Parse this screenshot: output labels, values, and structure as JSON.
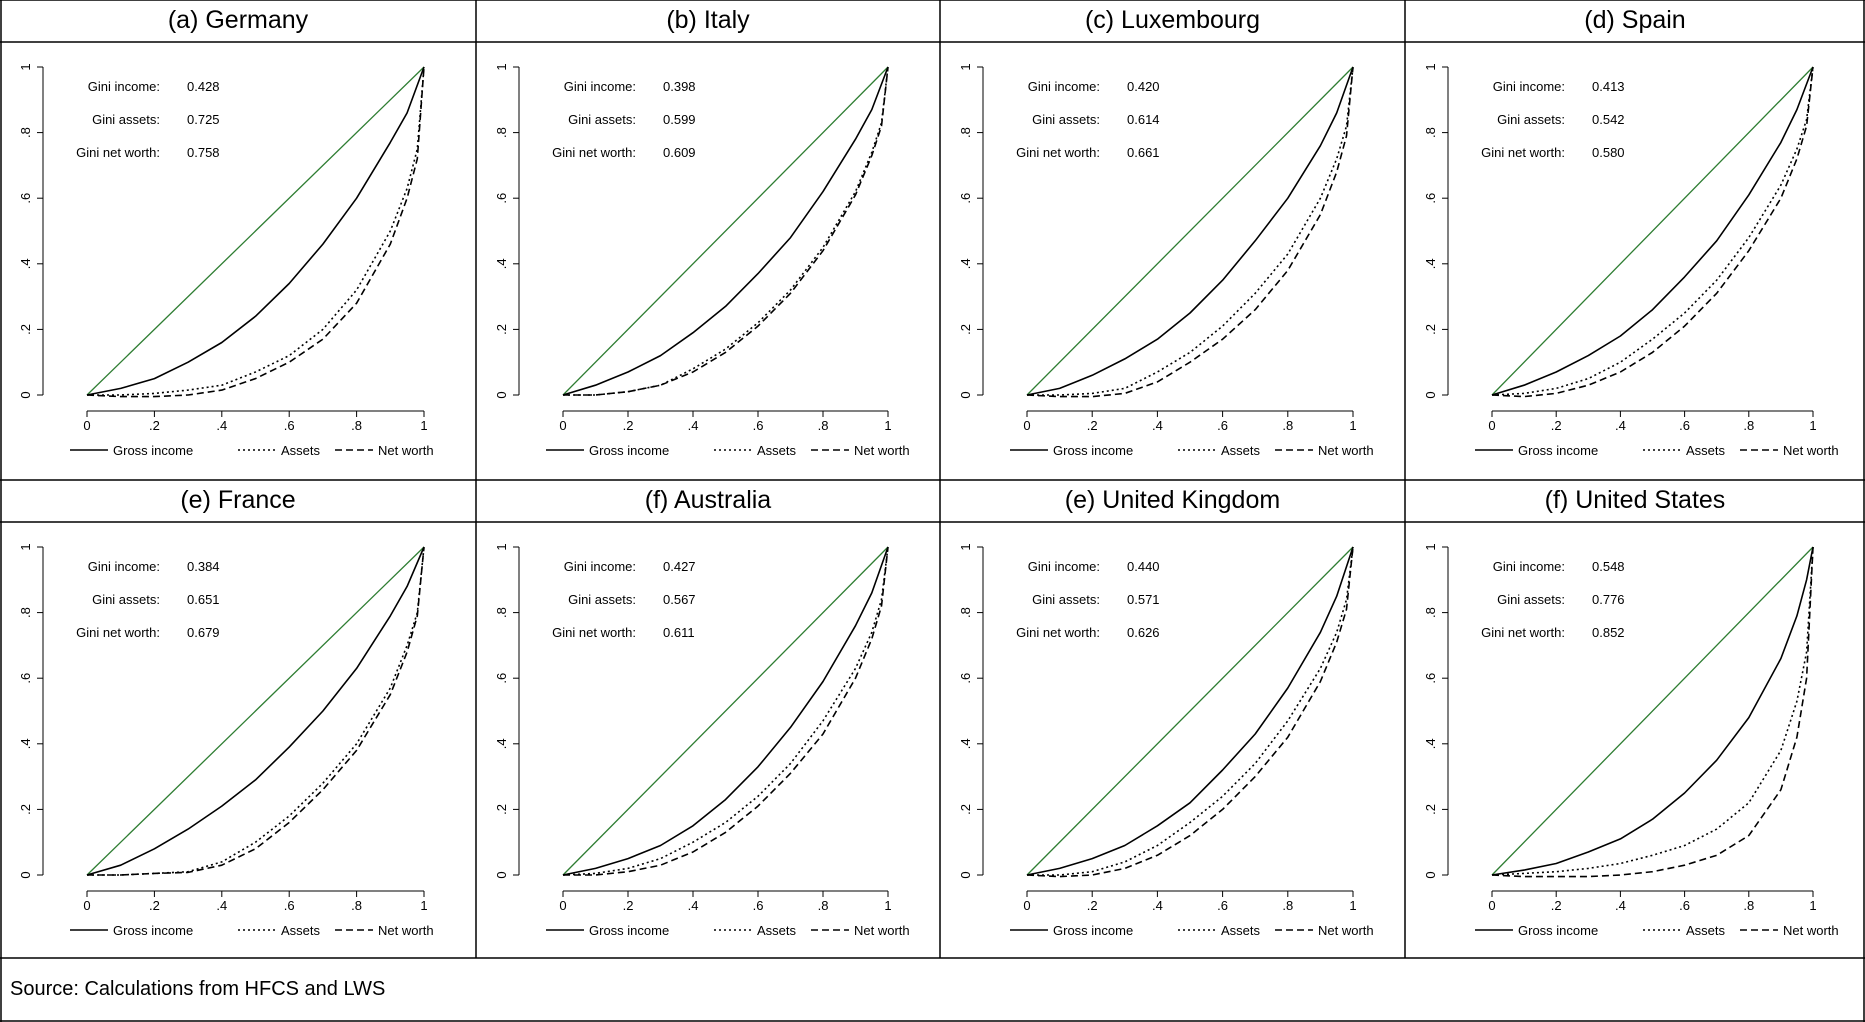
{
  "source_note": "Source: Calculations from HFCS and LWS",
  "legend": {
    "income": "Gross income",
    "assets": "Assets",
    "networth": "Net worth"
  },
  "stat_labels": {
    "income": "Gini income:",
    "assets": "Gini assets:",
    "networth": "Gini net worth:"
  },
  "colors": {
    "equality_line": "#2e7d32",
    "curves": "#000000"
  },
  "chart_data": [
    {
      "type": "line",
      "title": "(a) Germany",
      "xticks": [
        "0",
        ".2",
        ".4",
        ".6",
        ".8",
        "1"
      ],
      "yticks": [
        "0",
        ".2",
        ".4",
        ".6",
        ".8",
        "1"
      ],
      "xlim": [
        0,
        1
      ],
      "ylim": [
        0,
        1
      ],
      "gini": {
        "income": "0.428",
        "assets": "0.725",
        "networth": "0.758"
      },
      "series": [
        {
          "name": "Gross income",
          "x": [
            0,
            0.1,
            0.2,
            0.3,
            0.4,
            0.5,
            0.6,
            0.7,
            0.8,
            0.9,
            0.95,
            1
          ],
          "y": [
            0,
            0.02,
            0.05,
            0.1,
            0.16,
            0.24,
            0.34,
            0.46,
            0.6,
            0.77,
            0.86,
            1
          ]
        },
        {
          "name": "Assets",
          "x": [
            0,
            0.1,
            0.2,
            0.3,
            0.4,
            0.5,
            0.6,
            0.7,
            0.8,
            0.9,
            0.95,
            0.98,
            1
          ],
          "y": [
            0,
            0.0,
            0.005,
            0.015,
            0.03,
            0.07,
            0.12,
            0.2,
            0.32,
            0.5,
            0.63,
            0.75,
            1
          ]
        },
        {
          "name": "Net worth",
          "x": [
            0,
            0.1,
            0.2,
            0.3,
            0.4,
            0.5,
            0.6,
            0.7,
            0.8,
            0.9,
            0.95,
            0.98,
            1
          ],
          "y": [
            0,
            -0.005,
            -0.005,
            0.0,
            0.015,
            0.05,
            0.1,
            0.17,
            0.28,
            0.46,
            0.6,
            0.72,
            1
          ]
        }
      ]
    },
    {
      "type": "line",
      "title": "(b) Italy",
      "xticks": [
        "0",
        ".2",
        ".4",
        ".6",
        ".8",
        "1"
      ],
      "yticks": [
        "0",
        ".2",
        ".4",
        ".6",
        ".8",
        "1"
      ],
      "xlim": [
        0,
        1
      ],
      "ylim": [
        0,
        1
      ],
      "gini": {
        "income": "0.398",
        "assets": "0.599",
        "networth": "0.609"
      },
      "series": [
        {
          "name": "Gross income",
          "x": [
            0,
            0.1,
            0.2,
            0.3,
            0.4,
            0.5,
            0.6,
            0.7,
            0.8,
            0.9,
            0.95,
            1
          ],
          "y": [
            0,
            0.03,
            0.07,
            0.12,
            0.19,
            0.27,
            0.37,
            0.48,
            0.62,
            0.78,
            0.87,
            1
          ]
        },
        {
          "name": "Assets",
          "x": [
            0,
            0.1,
            0.2,
            0.3,
            0.4,
            0.5,
            0.6,
            0.7,
            0.8,
            0.9,
            0.95,
            0.98,
            1
          ],
          "y": [
            0,
            0.0,
            0.01,
            0.03,
            0.08,
            0.14,
            0.22,
            0.32,
            0.45,
            0.62,
            0.74,
            0.83,
            1
          ]
        },
        {
          "name": "Net worth",
          "x": [
            0,
            0.1,
            0.2,
            0.3,
            0.4,
            0.5,
            0.6,
            0.7,
            0.8,
            0.9,
            0.95,
            0.98,
            1
          ],
          "y": [
            0,
            0.0,
            0.01,
            0.03,
            0.07,
            0.13,
            0.21,
            0.31,
            0.44,
            0.61,
            0.73,
            0.82,
            1
          ]
        }
      ]
    },
    {
      "type": "line",
      "title": "(c) Luxembourg",
      "xticks": [
        "0",
        ".2",
        ".4",
        ".6",
        ".8",
        "1"
      ],
      "yticks": [
        "0",
        ".2",
        ".4",
        ".6",
        ".8",
        "1"
      ],
      "xlim": [
        0,
        1
      ],
      "ylim": [
        0,
        1
      ],
      "gini": {
        "income": "0.420",
        "assets": "0.614",
        "networth": "0.661"
      },
      "series": [
        {
          "name": "Gross income",
          "x": [
            0,
            0.1,
            0.2,
            0.3,
            0.4,
            0.5,
            0.6,
            0.7,
            0.8,
            0.9,
            0.95,
            1
          ],
          "y": [
            0,
            0.02,
            0.06,
            0.11,
            0.17,
            0.25,
            0.35,
            0.47,
            0.6,
            0.76,
            0.86,
            1
          ]
        },
        {
          "name": "Assets",
          "x": [
            0,
            0.1,
            0.2,
            0.3,
            0.4,
            0.5,
            0.6,
            0.7,
            0.8,
            0.9,
            0.95,
            0.98,
            1
          ],
          "y": [
            0,
            0.0,
            0.005,
            0.02,
            0.07,
            0.13,
            0.21,
            0.31,
            0.43,
            0.6,
            0.72,
            0.82,
            1
          ]
        },
        {
          "name": "Net worth",
          "x": [
            0,
            0.1,
            0.2,
            0.3,
            0.4,
            0.5,
            0.6,
            0.7,
            0.8,
            0.9,
            0.95,
            0.98,
            1
          ],
          "y": [
            0,
            -0.005,
            -0.005,
            0.005,
            0.04,
            0.1,
            0.17,
            0.26,
            0.38,
            0.55,
            0.68,
            0.79,
            1
          ]
        }
      ]
    },
    {
      "type": "line",
      "title": "(d) Spain",
      "xticks": [
        "0",
        ".2",
        ".4",
        ".6",
        ".8",
        "1"
      ],
      "yticks": [
        "0",
        ".2",
        ".4",
        ".6",
        ".8",
        "1"
      ],
      "xlim": [
        0,
        1
      ],
      "ylim": [
        0,
        1
      ],
      "gini": {
        "income": "0.413",
        "assets": "0.542",
        "networth": "0.580"
      },
      "series": [
        {
          "name": "Gross income",
          "x": [
            0,
            0.1,
            0.2,
            0.3,
            0.4,
            0.5,
            0.6,
            0.7,
            0.8,
            0.9,
            0.95,
            1
          ],
          "y": [
            0,
            0.03,
            0.07,
            0.12,
            0.18,
            0.26,
            0.36,
            0.47,
            0.61,
            0.77,
            0.87,
            1
          ]
        },
        {
          "name": "Assets",
          "x": [
            0,
            0.1,
            0.2,
            0.3,
            0.4,
            0.5,
            0.6,
            0.7,
            0.8,
            0.9,
            0.95,
            0.98,
            1
          ],
          "y": [
            0,
            0.005,
            0.02,
            0.05,
            0.1,
            0.17,
            0.25,
            0.35,
            0.48,
            0.64,
            0.75,
            0.84,
            1
          ]
        },
        {
          "name": "Net worth",
          "x": [
            0,
            0.1,
            0.2,
            0.3,
            0.4,
            0.5,
            0.6,
            0.7,
            0.8,
            0.9,
            0.95,
            0.98,
            1
          ],
          "y": [
            0,
            -0.005,
            0.005,
            0.03,
            0.07,
            0.13,
            0.21,
            0.31,
            0.44,
            0.6,
            0.72,
            0.82,
            1
          ]
        }
      ]
    },
    {
      "type": "line",
      "title": "(e) France",
      "xticks": [
        "0",
        ".2",
        ".4",
        ".6",
        ".8",
        "1"
      ],
      "yticks": [
        "0",
        ".2",
        ".4",
        ".6",
        ".8",
        "1"
      ],
      "xlim": [
        0,
        1
      ],
      "ylim": [
        0,
        1
      ],
      "gini": {
        "income": "0.384",
        "assets": "0.651",
        "networth": "0.679"
      },
      "series": [
        {
          "name": "Gross income",
          "x": [
            0,
            0.1,
            0.2,
            0.3,
            0.4,
            0.5,
            0.6,
            0.7,
            0.8,
            0.9,
            0.95,
            1
          ],
          "y": [
            0,
            0.03,
            0.08,
            0.14,
            0.21,
            0.29,
            0.39,
            0.5,
            0.63,
            0.79,
            0.88,
            1
          ]
        },
        {
          "name": "Assets",
          "x": [
            0,
            0.1,
            0.2,
            0.3,
            0.4,
            0.5,
            0.6,
            0.7,
            0.8,
            0.9,
            0.95,
            0.98,
            1
          ],
          "y": [
            0,
            0.0,
            0.005,
            0.01,
            0.04,
            0.1,
            0.18,
            0.28,
            0.4,
            0.57,
            0.7,
            0.8,
            1
          ]
        },
        {
          "name": "Net worth",
          "x": [
            0,
            0.1,
            0.2,
            0.3,
            0.4,
            0.5,
            0.6,
            0.7,
            0.8,
            0.9,
            0.95,
            0.98,
            1
          ],
          "y": [
            0,
            0.0,
            0.005,
            0.008,
            0.03,
            0.08,
            0.16,
            0.26,
            0.38,
            0.55,
            0.68,
            0.79,
            1
          ]
        }
      ]
    },
    {
      "type": "line",
      "title": "(f) Australia",
      "xticks": [
        "0",
        ".2",
        ".4",
        ".6",
        ".8",
        "1"
      ],
      "yticks": [
        "0",
        ".2",
        ".4",
        ".6",
        ".8",
        "1"
      ],
      "xlim": [
        0,
        1
      ],
      "ylim": [
        0,
        1
      ],
      "gini": {
        "income": "0.427",
        "assets": "0.567",
        "networth": "0.611"
      },
      "series": [
        {
          "name": "Gross income",
          "x": [
            0,
            0.1,
            0.2,
            0.3,
            0.4,
            0.5,
            0.6,
            0.7,
            0.8,
            0.9,
            0.95,
            1
          ],
          "y": [
            0,
            0.02,
            0.05,
            0.09,
            0.15,
            0.23,
            0.33,
            0.45,
            0.59,
            0.76,
            0.86,
            1
          ]
        },
        {
          "name": "Assets",
          "x": [
            0,
            0.1,
            0.2,
            0.3,
            0.4,
            0.5,
            0.6,
            0.7,
            0.8,
            0.9,
            0.95,
            0.98,
            1
          ],
          "y": [
            0,
            0.005,
            0.02,
            0.05,
            0.1,
            0.16,
            0.24,
            0.34,
            0.47,
            0.63,
            0.74,
            0.84,
            1
          ]
        },
        {
          "name": "Net worth",
          "x": [
            0,
            0.1,
            0.2,
            0.3,
            0.4,
            0.5,
            0.6,
            0.7,
            0.8,
            0.9,
            0.95,
            0.98,
            1
          ],
          "y": [
            0,
            0.0,
            0.01,
            0.03,
            0.07,
            0.13,
            0.21,
            0.31,
            0.43,
            0.6,
            0.72,
            0.82,
            1
          ]
        }
      ]
    },
    {
      "type": "line",
      "title": "(e) United Kingdom",
      "xticks": [
        "0",
        ".2",
        ".4",
        ".6",
        ".8",
        "1"
      ],
      "yticks": [
        "0",
        ".2",
        ".4",
        ".6",
        ".8",
        "1"
      ],
      "xlim": [
        0,
        1
      ],
      "ylim": [
        0,
        1
      ],
      "gini": {
        "income": "0.440",
        "assets": "0.571",
        "networth": "0.626"
      },
      "series": [
        {
          "name": "Gross income",
          "x": [
            0,
            0.1,
            0.2,
            0.3,
            0.4,
            0.5,
            0.6,
            0.7,
            0.8,
            0.9,
            0.95,
            1
          ],
          "y": [
            0,
            0.02,
            0.05,
            0.09,
            0.15,
            0.22,
            0.32,
            0.43,
            0.57,
            0.74,
            0.85,
            1
          ]
        },
        {
          "name": "Assets",
          "x": [
            0,
            0.1,
            0.2,
            0.3,
            0.4,
            0.5,
            0.6,
            0.7,
            0.8,
            0.9,
            0.95,
            0.98,
            1
          ],
          "y": [
            0,
            0.0,
            0.01,
            0.04,
            0.09,
            0.16,
            0.24,
            0.34,
            0.47,
            0.63,
            0.74,
            0.84,
            1
          ]
        },
        {
          "name": "Net worth",
          "x": [
            0,
            0.1,
            0.2,
            0.3,
            0.4,
            0.5,
            0.6,
            0.7,
            0.8,
            0.9,
            0.95,
            0.98,
            1
          ],
          "y": [
            0,
            -0.005,
            0.0,
            0.02,
            0.06,
            0.12,
            0.2,
            0.3,
            0.42,
            0.59,
            0.71,
            0.81,
            1
          ]
        }
      ]
    },
    {
      "type": "line",
      "title": "(f) United States",
      "xticks": [
        "0",
        ".2",
        ".4",
        ".6",
        ".8",
        "1"
      ],
      "yticks": [
        "0",
        ".2",
        ".4",
        ".6",
        ".8",
        "1"
      ],
      "xlim": [
        0,
        1
      ],
      "ylim": [
        0,
        1
      ],
      "gini": {
        "income": "0.548",
        "assets": "0.776",
        "networth": "0.852"
      },
      "series": [
        {
          "name": "Gross income",
          "x": [
            0,
            0.1,
            0.2,
            0.3,
            0.4,
            0.5,
            0.6,
            0.7,
            0.8,
            0.9,
            0.95,
            0.98,
            1
          ],
          "y": [
            0,
            0.015,
            0.035,
            0.07,
            0.11,
            0.17,
            0.25,
            0.35,
            0.48,
            0.66,
            0.79,
            0.9,
            1
          ]
        },
        {
          "name": "Assets",
          "x": [
            0,
            0.1,
            0.2,
            0.3,
            0.4,
            0.5,
            0.6,
            0.7,
            0.8,
            0.9,
            0.95,
            0.98,
            1
          ],
          "y": [
            0,
            0.005,
            0.01,
            0.02,
            0.035,
            0.06,
            0.09,
            0.14,
            0.22,
            0.38,
            0.53,
            0.68,
            1
          ]
        },
        {
          "name": "Net worth",
          "x": [
            0,
            0.1,
            0.2,
            0.3,
            0.4,
            0.5,
            0.6,
            0.7,
            0.8,
            0.9,
            0.95,
            0.98,
            1
          ],
          "y": [
            0,
            -0.005,
            -0.005,
            -0.005,
            0.0,
            0.01,
            0.03,
            0.06,
            0.12,
            0.26,
            0.42,
            0.6,
            1
          ]
        }
      ]
    }
  ]
}
